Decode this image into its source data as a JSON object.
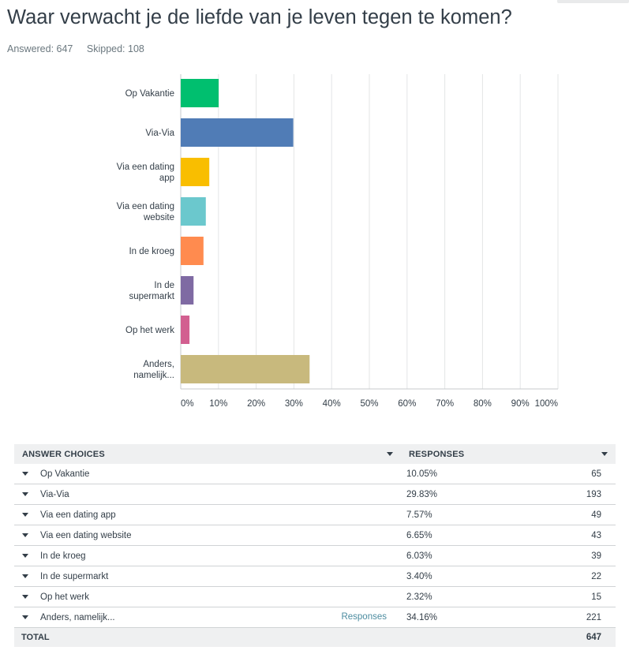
{
  "question": {
    "title": "Waar verwacht je de liefde van je leven tegen te komen?",
    "answered": "Answered: 647",
    "skipped": "Skipped: 108"
  },
  "chart_data": {
    "type": "bar",
    "orientation": "horizontal",
    "categories": [
      [
        "Op Vakantie"
      ],
      [
        "Via-Via"
      ],
      [
        "Via een dating",
        "app"
      ],
      [
        "Via een dating",
        "website"
      ],
      [
        "In de kroeg"
      ],
      [
        "In de",
        "supermarkt"
      ],
      [
        "Op het werk"
      ],
      [
        "Anders,",
        "namelijk..."
      ]
    ],
    "values": [
      10.05,
      29.83,
      7.57,
      6.65,
      6.03,
      3.4,
      2.32,
      34.16
    ],
    "colors": [
      "#00bf6f",
      "#507cb6",
      "#f9be00",
      "#6bc8cd",
      "#ff8b4f",
      "#7f6aa3",
      "#d25f90",
      "#c8b97d"
    ],
    "xlim": [
      0,
      100
    ],
    "ticks": [
      "0%",
      "10%",
      "20%",
      "30%",
      "40%",
      "50%",
      "60%",
      "70%",
      "80%",
      "90%",
      "100%"
    ],
    "grid": true
  },
  "table": {
    "header_choices": "ANSWER CHOICES",
    "header_responses": "RESPONSES",
    "rows": [
      {
        "choice": "Op Vakantie",
        "pct": "10.05%",
        "count": "65"
      },
      {
        "choice": "Via-Via",
        "pct": "29.83%",
        "count": "193"
      },
      {
        "choice": "Via een dating app",
        "pct": "7.57%",
        "count": "49"
      },
      {
        "choice": "Via een dating website",
        "pct": "6.65%",
        "count": "43"
      },
      {
        "choice": "In de kroeg",
        "pct": "6.03%",
        "count": "39"
      },
      {
        "choice": "In de supermarkt",
        "pct": "3.40%",
        "count": "22"
      },
      {
        "choice": "Op het werk",
        "pct": "2.32%",
        "count": "15"
      },
      {
        "choice": "Anders, namelijk...",
        "pct": "34.16%",
        "count": "221",
        "link": "Responses"
      }
    ],
    "total_label": "TOTAL",
    "total_count": "647"
  }
}
